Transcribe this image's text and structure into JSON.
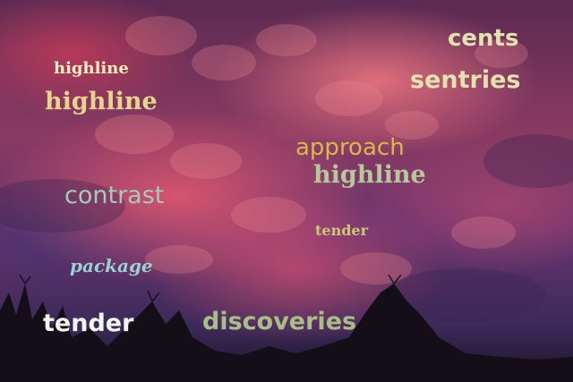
{
  "words": [
    {
      "text": "cents",
      "color": "#e3e1b0"
    },
    {
      "text": "highline",
      "color": "#f4f0c4"
    },
    {
      "text": "sentries",
      "color": "#e3e1b0"
    },
    {
      "text": "highline",
      "color": "#e6d48e"
    },
    {
      "text": "approach",
      "color": "#d8b84a"
    },
    {
      "text": "highline",
      "color": "#b8c79a"
    },
    {
      "text": "contrast",
      "color": "#a9c7c1"
    },
    {
      "text": "tender",
      "color": "#cbc87a"
    },
    {
      "text": "package",
      "color": "#9fcfd2"
    },
    {
      "text": "tender",
      "color": "#f3f4ee"
    },
    {
      "text": "discoveries",
      "color": "#a9bd8a"
    }
  ],
  "palette": {
    "sky_pink": "#e86a80",
    "sky_purple": "#4a3468",
    "silhouette": "#140e18"
  }
}
